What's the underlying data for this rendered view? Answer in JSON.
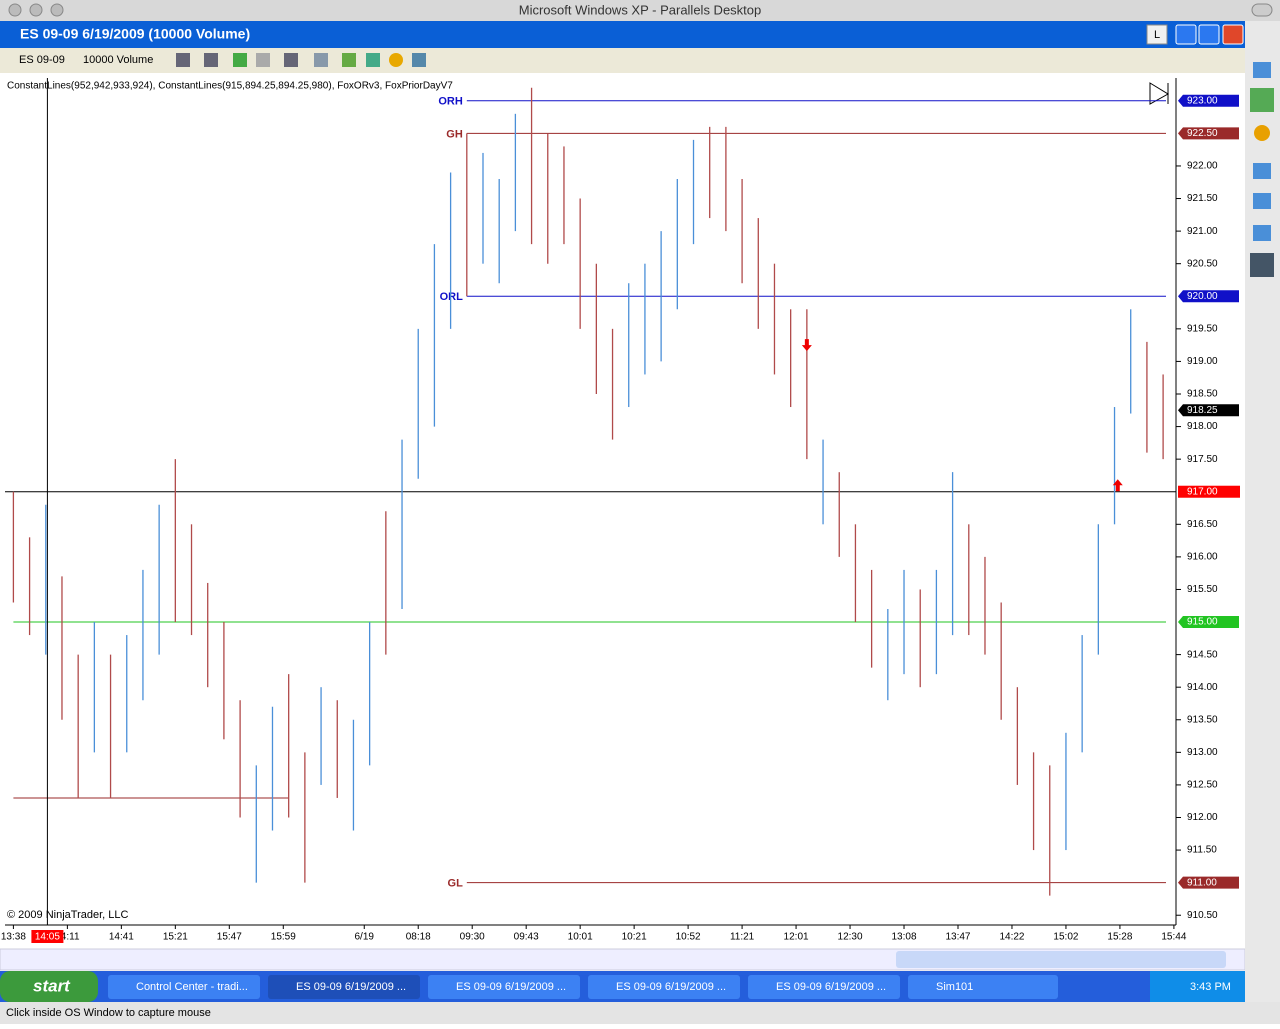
{
  "host_title": "Microsoft Windows XP - Parallels Desktop",
  "app_title": "ES 09-09  6/19/2009 (10000 Volume)",
  "window_button": "L",
  "toolbar": {
    "instrument": "ES 09-09",
    "period": "10000 Volume"
  },
  "indicators": "ConstantLines(952,942,933,924), ConstantLines(915,894.25,894.25,980), FoxORv3, FoxPriorDayV7",
  "copyright": "© 2009 NinjaTrader, LLC",
  "chart_data": {
    "type": "ohlc-bars",
    "ylim": [
      910.35,
      923.35
    ],
    "yticks": [
      {
        "value": 922,
        "label": "922.00"
      },
      {
        "value": 921.5,
        "label": "921.50"
      },
      {
        "value": 921,
        "label": "921.00"
      },
      {
        "value": 920.5,
        "label": "920.50"
      },
      {
        "value": 919.5,
        "label": "919.50"
      },
      {
        "value": 919,
        "label": "919.00"
      },
      {
        "value": 918.5,
        "label": "918.50"
      },
      {
        "value": 918,
        "label": "918.00"
      },
      {
        "value": 917.5,
        "label": "917.50"
      },
      {
        "value": 916.5,
        "label": "916.50"
      },
      {
        "value": 916,
        "label": "916.00"
      },
      {
        "value": 915.5,
        "label": "915.50"
      },
      {
        "value": 914.5,
        "label": "914.50"
      },
      {
        "value": 914,
        "label": "914.00"
      },
      {
        "value": 913.5,
        "label": "913.50"
      },
      {
        "value": 913,
        "label": "913.00"
      },
      {
        "value": 912.5,
        "label": "912.50"
      },
      {
        "value": 912,
        "label": "912.00"
      },
      {
        "value": 911.5,
        "label": "911.50"
      },
      {
        "value": 910.5,
        "label": "910.50"
      }
    ],
    "xlim": [
      -1,
      216.5
    ],
    "xticks": [
      {
        "value": 0,
        "label": "13:38"
      },
      {
        "value": 10,
        "label": "14:11"
      },
      {
        "value": 20,
        "label": "14:41"
      },
      {
        "value": 30,
        "label": "15:21"
      },
      {
        "value": 40,
        "label": "15:47"
      },
      {
        "value": 50,
        "label": "15:59"
      },
      {
        "value": 65,
        "label": "6/19"
      },
      {
        "value": 75,
        "label": "08:18"
      },
      {
        "value": 85,
        "label": "09:30"
      },
      {
        "value": 95,
        "label": "09:43"
      },
      {
        "value": 105,
        "label": "10:01"
      },
      {
        "value": 115,
        "label": "10:21"
      },
      {
        "value": 125,
        "label": "10:52"
      },
      {
        "value": 135,
        "label": "11:21"
      },
      {
        "value": 145,
        "label": "12:01"
      },
      {
        "value": 155,
        "label": "12:30"
      },
      {
        "value": 165,
        "label": "13:08"
      },
      {
        "value": 175,
        "label": "13:47"
      },
      {
        "value": 185,
        "label": "14:22"
      },
      {
        "value": 195,
        "label": "15:02"
      },
      {
        "value": 205,
        "label": "15:28"
      },
      {
        "value": 215,
        "label": "15:44"
      }
    ],
    "up_color": "#4a8fd8",
    "down_color": "#b04a4a",
    "x": [
      0,
      3,
      6,
      9,
      12,
      15,
      18,
      21,
      24,
      27,
      30,
      33,
      36,
      39,
      42,
      45,
      48,
      51,
      54,
      57,
      60,
      63,
      66,
      69,
      72,
      75,
      78,
      81,
      84,
      87,
      90,
      93,
      96,
      99,
      102,
      105,
      108,
      111,
      114,
      117,
      120,
      123,
      126,
      129,
      132,
      135,
      138,
      141,
      144,
      147,
      150,
      153,
      156,
      159,
      162,
      165,
      168,
      171,
      174,
      177,
      180,
      183,
      186,
      189,
      192,
      195,
      198,
      201,
      204,
      207,
      210,
      213
    ],
    "low": [
      915.3,
      914.8,
      914.5,
      913.5,
      912.3,
      913.0,
      912.3,
      913.0,
      913.8,
      914.5,
      915.0,
      914.8,
      914.0,
      913.2,
      912.0,
      911.0,
      911.8,
      912.0,
      911.0,
      912.5,
      912.3,
      911.8,
      912.8,
      914.5,
      915.2,
      917.2,
      918.0,
      919.5,
      920.0,
      920.5,
      920.2,
      921.0,
      920.8,
      920.5,
      920.8,
      919.5,
      918.5,
      917.8,
      918.3,
      918.8,
      919.0,
      919.8,
      920.8,
      921.2,
      921.0,
      920.2,
      919.5,
      918.8,
      918.3,
      917.5,
      916.5,
      916.0,
      915.0,
      914.3,
      913.8,
      914.2,
      914.0,
      914.2,
      914.8,
      914.8,
      914.5,
      913.5,
      912.5,
      911.5,
      910.8,
      911.5,
      913.0,
      914.5,
      916.5,
      918.2,
      917.6,
      917.5
    ],
    "high": [
      917.0,
      916.3,
      916.8,
      915.7,
      914.5,
      915.0,
      914.5,
      914.8,
      915.8,
      916.8,
      917.5,
      916.5,
      915.6,
      915.0,
      913.8,
      912.8,
      913.7,
      914.2,
      913.0,
      914.0,
      913.8,
      913.5,
      915.0,
      916.7,
      917.8,
      919.5,
      920.8,
      921.9,
      922.5,
      922.2,
      921.8,
      922.8,
      923.2,
      922.5,
      922.3,
      921.5,
      920.5,
      919.5,
      920.2,
      920.5,
      921.0,
      921.8,
      922.4,
      922.6,
      922.6,
      921.8,
      921.2,
      920.5,
      919.8,
      919.8,
      917.8,
      917.3,
      916.5,
      915.8,
      915.2,
      915.8,
      915.5,
      915.8,
      917.3,
      916.5,
      916.0,
      915.3,
      914.0,
      913.0,
      912.8,
      913.3,
      914.8,
      916.5,
      918.3,
      919.8,
      919.3,
      918.8
    ],
    "up": [
      false,
      false,
      true,
      false,
      false,
      true,
      false,
      true,
      true,
      true,
      false,
      false,
      false,
      false,
      false,
      true,
      true,
      false,
      false,
      true,
      false,
      true,
      true,
      false,
      true,
      true,
      true,
      true,
      false,
      true,
      true,
      true,
      false,
      false,
      false,
      false,
      false,
      false,
      true,
      true,
      true,
      true,
      true,
      false,
      false,
      false,
      false,
      false,
      false,
      false,
      true,
      false,
      false,
      false,
      true,
      true,
      false,
      true,
      true,
      false,
      false,
      false,
      false,
      false,
      false,
      true,
      true,
      true,
      true,
      true,
      false,
      false
    ],
    "levels": [
      {
        "name": "ORH",
        "value": 923,
        "label": "923.00",
        "color": "#1010c8",
        "from": 84
      },
      {
        "name": "GH",
        "value": 922.5,
        "label": "922.50",
        "color": "#9a2a2a",
        "from": 84
      },
      {
        "name": "ORL",
        "value": 920,
        "label": "920.00",
        "color": "#1010c8",
        "from": 84
      },
      {
        "name": "GL",
        "value": 911,
        "label": "911.00",
        "color": "#9a2a2a",
        "from": 84
      },
      {
        "value": 915,
        "label": "915.00",
        "color": "#22c422",
        "from": 0
      },
      {
        "value": 918.25,
        "label": "918.25",
        "color": "#000000"
      }
    ],
    "segments": [
      {
        "value": 912.3,
        "x": [
          0,
          51
        ],
        "color": "#9a2a2a"
      }
    ],
    "crosshair": {
      "x": 6.3,
      "x_label": "14:05",
      "y": 917,
      "y_label": "917.00",
      "color": "#ff0000"
    },
    "signals": [
      {
        "x": 147,
        "y": 919.25,
        "direction": "down"
      },
      {
        "x": 204.6,
        "y": 917.1,
        "direction": "up"
      }
    ]
  },
  "taskbar": {
    "start": "start",
    "items": [
      "Control Center - tradi...",
      "ES 09-09  6/19/2009 ...",
      "ES 09-09  6/19/2009 ...",
      "ES 09-09  6/19/2009 ...",
      "ES 09-09  6/19/2009 ...",
      "Sim101"
    ],
    "clock": "3:43 PM"
  },
  "status": "Click inside OS Window to capture mouse"
}
